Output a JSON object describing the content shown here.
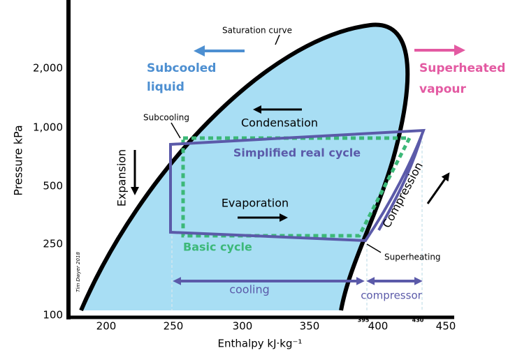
{
  "axes": {
    "y_label": "Pressure  kPa",
    "x_label": "Enthalpy kJ·kg⁻¹",
    "y_ticks": [
      "2,000",
      "1,000",
      "500",
      "250",
      "100"
    ],
    "x_ticks": [
      "200",
      "250",
      "300",
      "350",
      "400",
      "450"
    ],
    "x_markers": [
      "395",
      "430"
    ]
  },
  "labels": {
    "saturation_curve": "Saturation curve",
    "subcooled": "Subcooled",
    "liquid": "liquid",
    "superheated": "Superheated",
    "vapour": "vapour",
    "subcooling": "Subcooling",
    "condensation": "Condensation",
    "real_cycle": "Simplified real cycle",
    "expansion": "Expansion",
    "evaporation": "Evaporation",
    "compression": "Compression",
    "basic_cycle": "Basic cycle",
    "superheating": "Superheating",
    "cooling": "cooling",
    "compressor": "compressor",
    "credit": "Tim Dwyer 2018"
  }
}
